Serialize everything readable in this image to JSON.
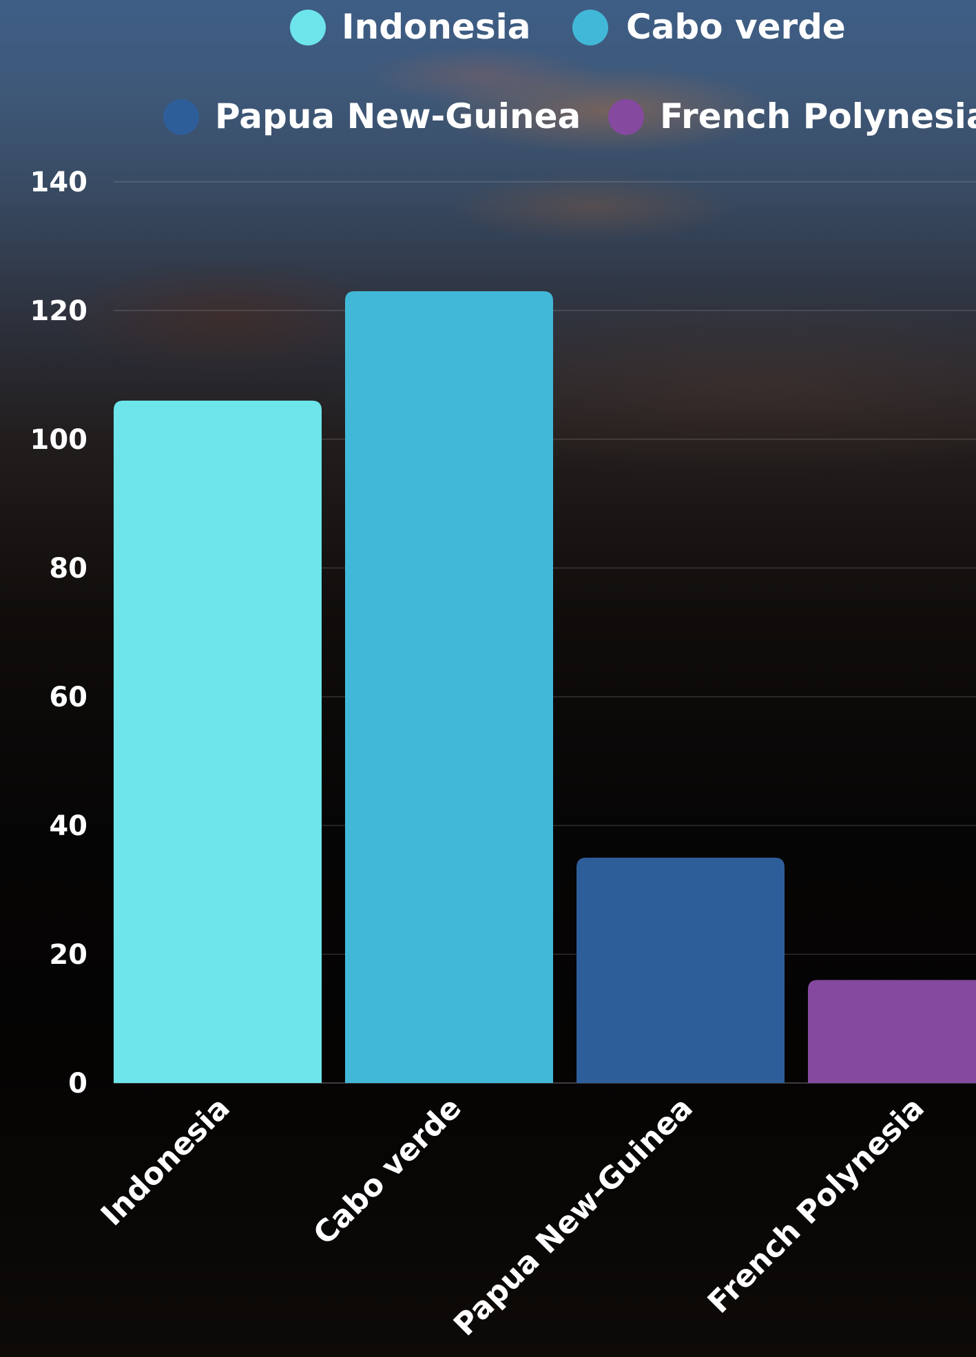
{
  "chart_data": {
    "type": "bar",
    "title": "",
    "xlabel": "",
    "ylabel": "",
    "categories": [
      "Indonesia",
      "Cabo verde",
      "Papua New-Guinea",
      "French Polynesia"
    ],
    "values": [
      106,
      123,
      35,
      16
    ],
    "colors": [
      "#6de5ea",
      "#42b8d8",
      "#2e5e9a",
      "#8549a0"
    ],
    "ylim": [
      0,
      140
    ],
    "yticks": [
      0,
      20,
      40,
      60,
      80,
      100,
      120,
      140
    ],
    "grid": true,
    "legend": {
      "placement": "top",
      "items": [
        {
          "label": "Indonesia",
          "color": "#6de5ea"
        },
        {
          "label": "Cabo verde",
          "color": "#42b8d8"
        },
        {
          "label": "Papua New-Guinea",
          "color": "#2e5e9a"
        },
        {
          "label": "French Polynesia",
          "color": "#8549a0"
        }
      ]
    }
  }
}
